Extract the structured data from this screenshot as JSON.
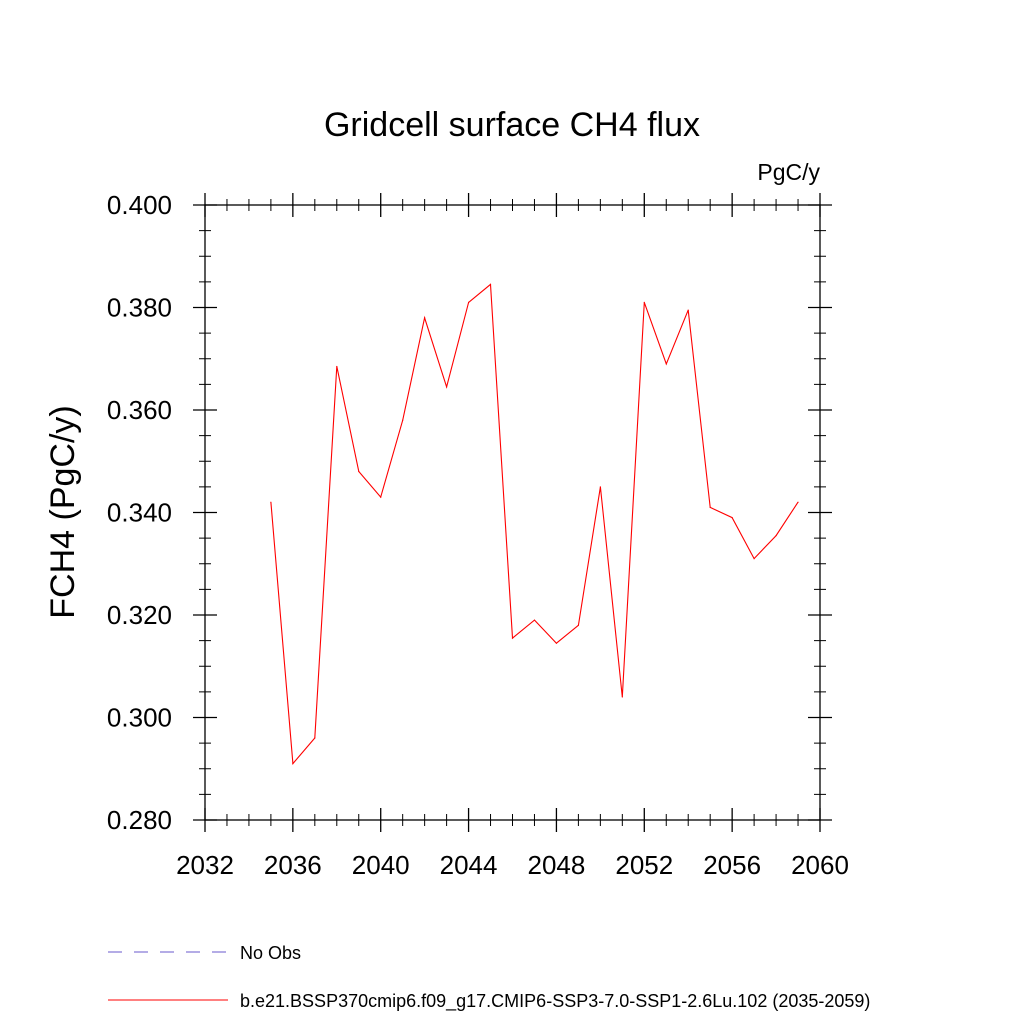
{
  "chart_data": {
    "type": "line",
    "title": "Gridcell surface CH4 flux",
    "units": "PgC/y",
    "ylabel": "FCH4  (PgC/y)",
    "xlabel": "",
    "xlim": [
      2032,
      2060
    ],
    "ylim": [
      0.28,
      0.4
    ],
    "x_ticks": [
      2032,
      2036,
      2040,
      2044,
      2048,
      2052,
      2056,
      2060
    ],
    "x_tick_labels": [
      "2032",
      "2036",
      "2040",
      "2044",
      "2048",
      "2052",
      "2056",
      "2060"
    ],
    "y_ticks": [
      0.28,
      0.3,
      0.32,
      0.34,
      0.36,
      0.38,
      0.4
    ],
    "y_tick_labels": [
      "0.280",
      "0.300",
      "0.320",
      "0.340",
      "0.360",
      "0.380",
      "0.400"
    ],
    "grid": false,
    "legend_position": "bottom",
    "series": [
      {
        "name": "b.e21.BSSP370cmip6.f09_g17.CMIP6-SSP3-7.0-SSP1-2.6Lu.102 (2035-2059)",
        "color": "#ff0000",
        "dash": "solid",
        "x": [
          2035,
          2036,
          2037,
          2038,
          2039,
          2040,
          2041,
          2042,
          2043,
          2044,
          2045,
          2046,
          2047,
          2048,
          2049,
          2050,
          2051,
          2052,
          2053,
          2054,
          2055,
          2056,
          2057,
          2058,
          2059
        ],
        "values": [
          0.342,
          0.291,
          0.296,
          0.3685,
          0.348,
          0.343,
          0.358,
          0.378,
          0.3645,
          0.381,
          0.3845,
          0.3155,
          0.319,
          0.3145,
          0.318,
          0.345,
          0.304,
          0.381,
          0.369,
          0.3795,
          0.341,
          0.339,
          0.331,
          0.3355,
          0.342
        ]
      }
    ],
    "legend": [
      {
        "label": "No Obs",
        "color": "#6a5acd",
        "dash": "dashed"
      },
      {
        "label": "b.e21.BSSP370cmip6.f09_g17.CMIP6-SSP3-7.0-SSP1-2.6Lu.102 (2035-2059)",
        "color": "#ff0000",
        "dash": "solid"
      }
    ]
  }
}
